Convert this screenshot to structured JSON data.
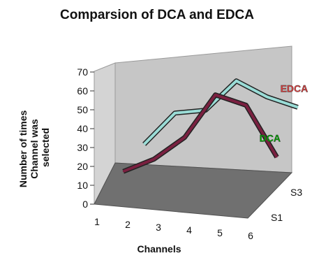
{
  "chart_data": {
    "type": "line",
    "title": "Comparsion of DCA and EDCA",
    "xlabel": "Channels",
    "ylabel_lines": [
      "Number of times",
      "Channel was",
      "selected"
    ],
    "x": [
      1,
      2,
      3,
      4,
      5,
      6
    ],
    "depth_labels": [
      "S1",
      "S3"
    ],
    "ylim": [
      0,
      70
    ],
    "yticks": [
      0,
      10,
      20,
      30,
      40,
      50,
      60,
      70
    ],
    "grid": false,
    "series": [
      {
        "name": "DCA",
        "depth_index": 0,
        "values": [
          12,
          20,
          33,
          57,
          53,
          27
        ],
        "color": "#7a2040",
        "label_color": "#00aa00"
      },
      {
        "name": "EDCA",
        "depth_index": 1,
        "values": [
          19,
          37,
          40,
          57,
          50,
          46
        ],
        "color": "#9adcd6",
        "label_color": "#e04040"
      }
    ]
  }
}
